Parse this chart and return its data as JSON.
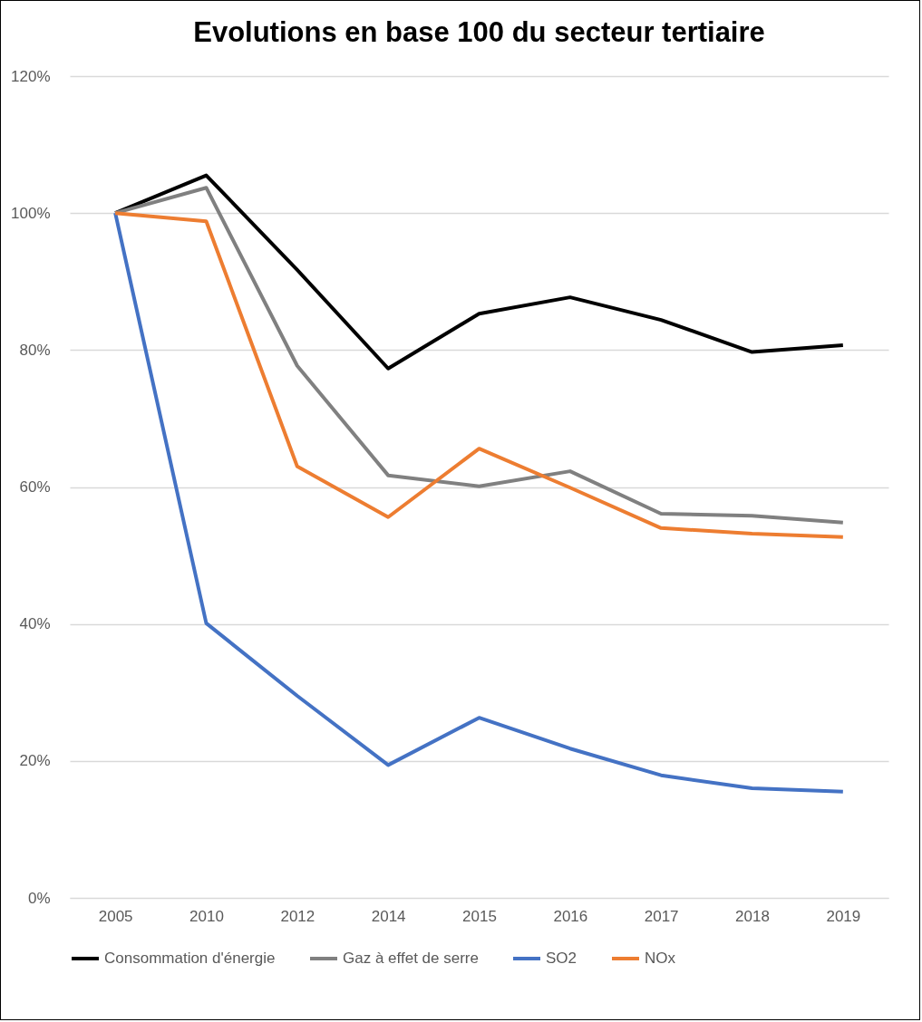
{
  "chart_data": {
    "type": "line",
    "title": "Evolutions en base 100 du secteur tertiaire",
    "categories": [
      "2005",
      "2010",
      "2012",
      "2014",
      "2015",
      "2016",
      "2017",
      "2018",
      "2019"
    ],
    "series": [
      {
        "name": "Consommation d'énergie",
        "color": "#000000",
        "values": [
          100,
          105.5,
          91.7,
          77.3,
          85.3,
          87.7,
          84.4,
          79.7,
          80.7
        ]
      },
      {
        "name": "Gaz à effet de serre",
        "color": "#808080",
        "values": [
          100,
          103.7,
          77.7,
          61.7,
          60.1,
          62.3,
          56.1,
          55.8,
          54.8
        ]
      },
      {
        "name": "SO2",
        "color": "#4472c4",
        "values": [
          100,
          40.1,
          29.5,
          19.4,
          26.3,
          21.8,
          17.9,
          16.0,
          15.5
        ]
      },
      {
        "name": "NOx",
        "color": "#ed7d31",
        "values": [
          100,
          98.8,
          63.0,
          55.6,
          65.6,
          59.9,
          54.0,
          53.2,
          52.7
        ]
      }
    ],
    "ylim": [
      0,
      120
    ],
    "yticks": [
      {
        "value": 0,
        "label": "0%"
      },
      {
        "value": 20,
        "label": "20%"
      },
      {
        "value": 40,
        "label": "40%"
      },
      {
        "value": 60,
        "label": "60%"
      },
      {
        "value": 80,
        "label": "80%"
      },
      {
        "value": 100,
        "label": "100%"
      },
      {
        "value": 120,
        "label": "120%"
      }
    ],
    "grid": "y",
    "legend": "bottom",
    "marker": "none",
    "line_style": "solid"
  }
}
